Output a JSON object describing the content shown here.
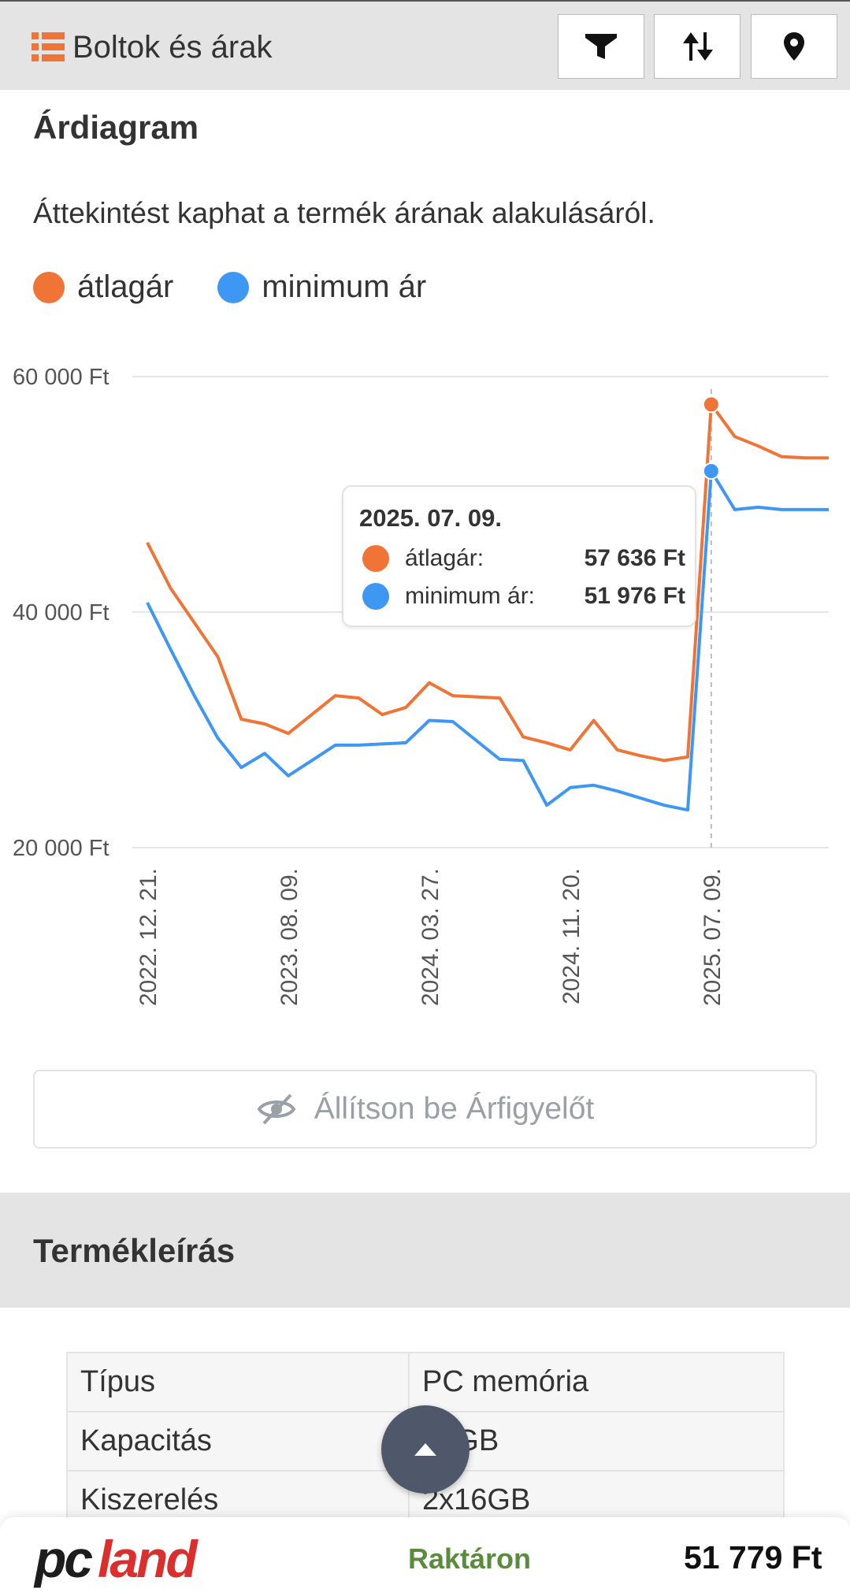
{
  "header": {
    "title": "Boltok és árak",
    "buttons": [
      {
        "name": "filter"
      },
      {
        "name": "sort"
      },
      {
        "name": "location"
      }
    ]
  },
  "price_chart": {
    "title": "Árdiagram",
    "subtitle": "Áttekintést kaphat a termék árának alakulásáról.",
    "legend": [
      {
        "label": "átlagár",
        "color": "#f07435"
      },
      {
        "label": "minimum ár",
        "color": "#3f97f4"
      }
    ],
    "tooltip": {
      "date": "2025. 07. 09.",
      "rows": [
        {
          "label": "átlagár:",
          "value": "57 636 Ft"
        },
        {
          "label": "minimum ár:",
          "value": "51 976 Ft"
        }
      ]
    }
  },
  "chart_data": {
    "type": "line",
    "ylim": [
      20000,
      60000
    ],
    "yticks": [
      "60 000 Ft",
      "40 000 Ft",
      "20 000 Ft"
    ],
    "ytick_values": [
      60000,
      40000,
      20000
    ],
    "xticks": [
      "2022. 12. 21.",
      "2023. 08. 09.",
      "2024. 03. 27.",
      "2024. 11. 20.",
      "2025. 07. 09."
    ],
    "grid": true,
    "series": [
      {
        "name": "átlagár",
        "color": "#f07435",
        "values": [
          45900,
          42000,
          39100,
          36200,
          30900,
          30500,
          29700,
          31300,
          32900,
          32700,
          31300,
          31900,
          34000,
          32900,
          32800,
          32700,
          29400,
          28900,
          28300,
          30800,
          28300,
          27800,
          27400,
          27700,
          57636,
          54900,
          54100,
          53200,
          53100,
          53100
        ]
      },
      {
        "name": "minimum ár",
        "color": "#3f97f4",
        "values": [
          40800,
          36800,
          32900,
          29300,
          26800,
          28000,
          26100,
          27400,
          28700,
          28700,
          28800,
          28900,
          30800,
          30700,
          29100,
          27500,
          27400,
          23600,
          25100,
          25300,
          24800,
          24200,
          23600,
          23200,
          51976,
          48700,
          48900,
          48700,
          48700,
          48700
        ]
      }
    ],
    "highlight_index": 24
  },
  "watch_button": {
    "label": "Állítson be Árfigyelőt"
  },
  "description": {
    "title": "Termékleírás",
    "rows": [
      {
        "key": "Típus",
        "value": "PC memória"
      },
      {
        "key": "Kapacitás",
        "value": "32GB"
      },
      {
        "key": "Kiszerelés",
        "value": "2x16GB"
      }
    ]
  },
  "bottom_bar": {
    "logo_text": "pcland",
    "stock": "Raktáron",
    "price": "51 779 Ft",
    "colors": {
      "logo": "#d9302e",
      "stock": "#5b8c3e"
    }
  }
}
